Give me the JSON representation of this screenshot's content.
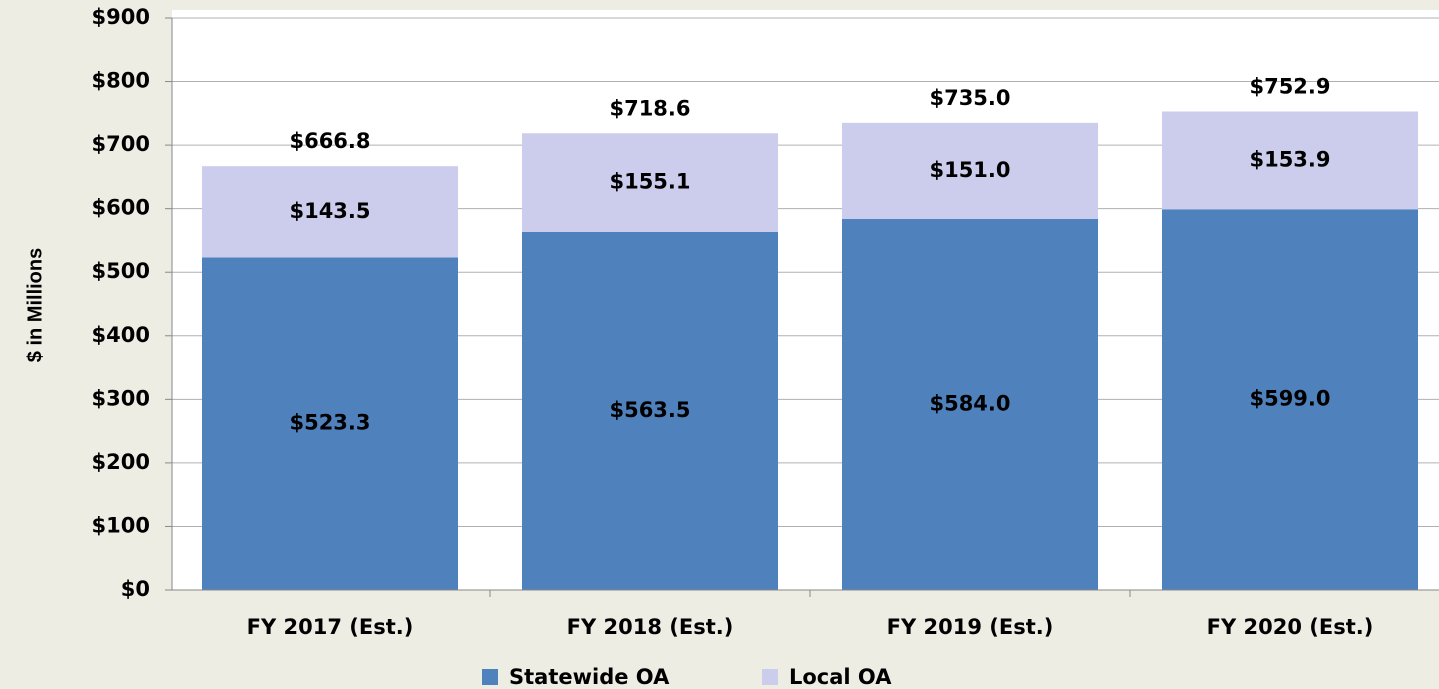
{
  "chart_data": {
    "type": "stacked_bar",
    "y_label": "$ in Millions",
    "categories": [
      "FY 2017 (Est.)",
      "FY 2018 (Est.)",
      "FY 2019 (Est.)",
      "FY 2020 (Est.)"
    ],
    "series": [
      {
        "name": "Statewide OA",
        "color": "#4f81bd",
        "values": [
          523.3,
          563.5,
          584.0,
          599.0
        ],
        "value_labels": [
          "$523.3",
          "$563.5",
          "$584.0",
          "$599.0"
        ]
      },
      {
        "name": "Local OA",
        "color": "#ccccec",
        "values": [
          143.5,
          155.1,
          151.0,
          153.9
        ],
        "value_labels": [
          "$143.5",
          "$155.1",
          "$151.0",
          "$153.9"
        ]
      }
    ],
    "totals": [
      666.8,
      718.6,
      735.0,
      752.9
    ],
    "total_labels": [
      "$666.8",
      "$718.6",
      "$735.0",
      "$752.9"
    ],
    "ylim": [
      0,
      900
    ],
    "yticks": [
      {
        "value": 0,
        "label": "$0"
      },
      {
        "value": 100,
        "label": "$100"
      },
      {
        "value": 200,
        "label": "$200"
      },
      {
        "value": 300,
        "label": "$300"
      },
      {
        "value": 400,
        "label": "$400"
      },
      {
        "value": 500,
        "label": "$500"
      },
      {
        "value": 600,
        "label": "$600"
      },
      {
        "value": 700,
        "label": "$700"
      },
      {
        "value": 800,
        "label": "$800"
      },
      {
        "value": 900,
        "label": "$900"
      }
    ],
    "grid": true,
    "legend": "bottom"
  }
}
